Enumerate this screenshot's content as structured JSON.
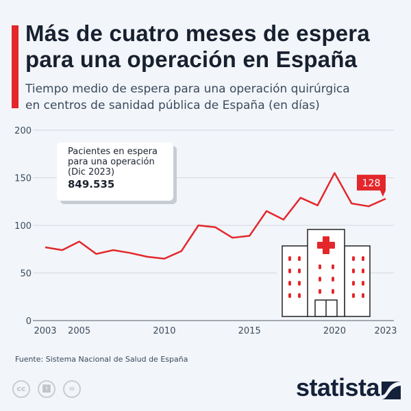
{
  "header": {
    "title_line1": "Más de cuatro meses de espera",
    "title_line2": "para una operación en España",
    "subtitle_line1": "Tiempo medio de espera para una operación quirúrgica",
    "subtitle_line2": "en centros de sanidad pública de España (en días)"
  },
  "callout": {
    "line1": "Pacientes en espera",
    "line2": "para una operación",
    "line3": "(Dic 2023)",
    "value": "849.535"
  },
  "chart_data": {
    "type": "line",
    "title": "",
    "xlabel": "",
    "ylabel": "",
    "x": [
      2003,
      2004,
      2005,
      2006,
      2007,
      2008,
      2009,
      2010,
      2011,
      2012,
      2013,
      2014,
      2015,
      2016,
      2017,
      2018,
      2019,
      2020,
      2021,
      2022,
      2023
    ],
    "values": [
      77,
      74,
      83,
      70,
      74,
      71,
      67,
      65,
      73,
      100,
      98,
      87,
      89,
      115,
      106,
      129,
      121,
      155,
      123,
      120,
      128
    ],
    "xlim": [
      2003,
      2023
    ],
    "ylim": [
      0,
      200
    ],
    "yticks": [
      0,
      50,
      100,
      150,
      200
    ],
    "xticks": [
      2003,
      2005,
      2010,
      2015,
      2020,
      2023
    ],
    "grid": true,
    "line_color": "#e3272b",
    "last_label": "128"
  },
  "footer": {
    "source": "Fuente: Sistema Nacional de Salud de España",
    "license_icons": [
      "cc-icon",
      "attribution-icon",
      "no-derivatives-icon"
    ],
    "logo": "statista"
  }
}
